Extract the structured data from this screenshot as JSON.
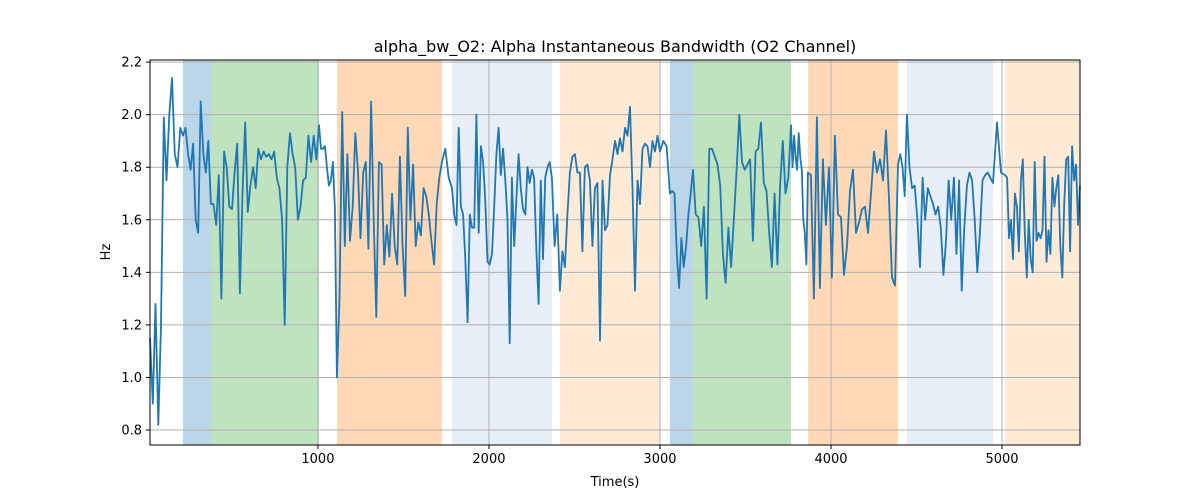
{
  "chart_data": {
    "type": "line",
    "title": "alpha_bw_O2: Alpha Instantaneous Bandwidth (O2 Channel)",
    "xlabel": "Time(s)",
    "ylabel": "Hz",
    "xlim": [
      18,
      5456
    ],
    "ylim": [
      0.743,
      2.208
    ],
    "xticks": [
      1000,
      2000,
      3000,
      4000,
      5000
    ],
    "yticks": [
      0.8,
      1.0,
      1.2,
      1.4,
      1.6,
      1.8,
      2.0,
      2.2
    ],
    "ytick_labels": [
      "0.8",
      "1.0",
      "1.2",
      "1.4",
      "1.6",
      "1.8",
      "2.0",
      "2.2"
    ],
    "grid": true,
    "line_color": "#1f77b4",
    "shaded_regions": [
      {
        "x0": 211,
        "x1": 374,
        "color": "#1f77b4",
        "alpha": 0.3
      },
      {
        "x0": 374,
        "x1": 1006,
        "color": "#2ca02c",
        "alpha": 0.3
      },
      {
        "x0": 1111,
        "x1": 1725,
        "color": "#ff7f0e",
        "alpha": 0.3
      },
      {
        "x0": 1784,
        "x1": 2368,
        "color": "#aec7e8",
        "alpha": 0.3
      },
      {
        "x0": 2415,
        "x1": 3000,
        "color": "#ffbb78",
        "alpha": 0.3
      },
      {
        "x0": 3058,
        "x1": 3193,
        "color": "#1f77b4",
        "alpha": 0.3
      },
      {
        "x0": 3193,
        "x1": 3766,
        "color": "#2ca02c",
        "alpha": 0.3
      },
      {
        "x0": 3866,
        "x1": 4392,
        "color": "#ff7f0e",
        "alpha": 0.3
      },
      {
        "x0": 4444,
        "x1": 4947,
        "color": "#aec7e8",
        "alpha": 0.3
      },
      {
        "x0": 5018,
        "x1": 5456,
        "color": "#ffbb78",
        "alpha": 0.3
      }
    ],
    "series_segments": [
      {
        "x0": 18,
        "x1": 211,
        "y": [
          1.15,
          0.9,
          1.28,
          0.82,
          1.2,
          1.99,
          1.75,
          2.0,
          2.14,
          1.85,
          1.8,
          1.95
        ]
      },
      {
        "x0": 211,
        "x1": 374,
        "y": [
          1.92,
          1.95,
          1.85,
          1.79,
          1.89,
          1.6,
          1.55,
          2.05,
          1.85,
          1.78,
          1.9
        ]
      },
      {
        "x0": 374,
        "x1": 1006,
        "y": [
          1.66,
          1.66,
          1.58,
          1.77,
          1.3,
          1.86,
          1.8,
          1.65,
          1.64,
          1.78,
          1.89,
          1.32,
          1.7,
          1.97,
          1.63,
          1.73,
          1.8,
          1.72,
          1.87,
          1.83,
          1.86,
          1.84,
          1.85,
          1.83,
          1.86,
          1.76,
          1.72,
          1.6,
          1.2,
          1.8,
          1.93,
          1.85,
          1.8,
          1.6,
          1.65,
          1.75,
          1.76,
          1.92,
          1.82,
          1.92,
          1.83
        ]
      },
      {
        "x0": 1006,
        "x1": 1111,
        "y": [
          1.96,
          1.87,
          1.87,
          1.88,
          1.8,
          1.73,
          1.75,
          1.82,
          1.64
        ]
      },
      {
        "x0": 1111,
        "x1": 1725,
        "y": [
          1.0,
          1.3,
          2.01,
          1.5,
          1.85,
          1.52,
          1.65,
          1.93,
          1.79,
          1.53,
          1.78,
          1.82,
          1.49,
          2.05,
          1.6,
          1.23,
          1.82,
          1.81,
          1.43,
          1.58,
          1.46,
          1.7,
          1.5,
          1.43,
          1.84,
          1.5,
          1.31,
          1.95,
          1.6,
          1.81,
          1.5,
          1.59,
          1.54,
          1.72,
          1.69,
          1.62,
          1.52,
          1.43,
          1.66,
          1.76
        ]
      },
      {
        "x0": 1725,
        "x1": 1784,
        "y": [
          1.82,
          1.87,
          1.76
        ]
      },
      {
        "x0": 1784,
        "x1": 2368,
        "y": [
          1.72,
          1.62,
          1.58,
          1.95,
          1.65,
          1.62,
          1.45,
          1.21,
          1.62,
          1.57,
          1.57,
          2.0,
          1.55,
          1.88,
          1.82,
          1.67,
          1.44,
          1.43,
          1.47,
          1.65,
          1.85,
          1.95,
          1.77,
          1.87,
          1.75,
          1.6,
          1.13,
          1.76,
          1.5,
          1.68,
          1.85,
          1.72,
          1.64,
          1.62,
          1.8,
          1.74,
          1.79,
          1.76,
          1.48,
          1.28,
          1.75,
          1.45,
          1.76,
          1.8,
          1.82
        ]
      },
      {
        "x0": 2368,
        "x1": 2415,
        "y": [
          1.76,
          1.5,
          1.62
        ]
      },
      {
        "x0": 2415,
        "x1": 3000,
        "y": [
          1.33,
          1.48,
          1.42,
          1.62,
          1.78,
          1.84,
          1.85,
          1.78,
          1.78,
          1.48,
          1.8,
          1.81,
          1.75,
          1.5,
          1.72,
          1.74,
          1.14,
          1.75,
          1.56,
          1.58,
          1.77,
          1.83,
          1.9,
          1.85,
          1.91,
          1.86,
          1.95,
          1.92,
          2.03,
          1.72,
          1.33,
          1.75,
          1.66,
          1.87,
          1.89,
          1.88,
          1.8,
          1.9,
          1.86,
          1.92
        ]
      },
      {
        "x0": 3000,
        "x1": 3058,
        "y": [
          1.86,
          1.9,
          1.88
        ]
      },
      {
        "x0": 3058,
        "x1": 3193,
        "y": [
          1.7,
          1.71,
          1.7,
          1.47,
          1.34,
          1.53,
          1.42,
          1.5,
          1.62,
          1.7
        ]
      },
      {
        "x0": 3193,
        "x1": 3766,
        "y": [
          1.79,
          1.62,
          1.61,
          1.5,
          1.65,
          1.3,
          1.87,
          1.87,
          1.84,
          1.81,
          1.73,
          1.47,
          1.36,
          1.57,
          1.42,
          1.6,
          1.78,
          2.0,
          1.82,
          1.79,
          1.81,
          1.83,
          1.52,
          1.86,
          1.87,
          1.97,
          1.74,
          1.71,
          1.55,
          1.42,
          1.7,
          1.43,
          1.73,
          1.9,
          1.7,
          1.76
        ]
      },
      {
        "x0": 3766,
        "x1": 3865,
        "y": [
          1.96,
          1.8,
          1.92,
          1.84,
          1.79,
          1.93,
          1.84,
          1.79,
          1.6,
          1.55,
          1.43
        ]
      },
      {
        "x0": 3865,
        "x1": 4392,
        "y": [
          1.78,
          1.77,
          1.3,
          1.99,
          1.34,
          1.83,
          1.58,
          1.8,
          1.38,
          1.92,
          1.62,
          1.61,
          1.39,
          1.5,
          1.71,
          1.79,
          1.55,
          1.59,
          1.64,
          1.65,
          1.55,
          1.7,
          1.86,
          1.78,
          1.83,
          1.75,
          1.94,
          1.68,
          1.38,
          1.35
        ]
      },
      {
        "x0": 4392,
        "x1": 4444,
        "y": [
          1.81,
          1.85,
          1.8,
          1.69
        ]
      },
      {
        "x0": 4444,
        "x1": 4947,
        "y": [
          2.0,
          1.8,
          1.72,
          1.73,
          1.6,
          1.42,
          1.76,
          1.6,
          1.72,
          1.69,
          1.66,
          1.62,
          1.65,
          1.57,
          1.39,
          1.52,
          1.75,
          1.6,
          1.76,
          1.47,
          1.75,
          1.33,
          1.57,
          1.73,
          1.78,
          1.75,
          1.6,
          1.4,
          1.55,
          1.75,
          1.77,
          1.78,
          1.76
        ]
      },
      {
        "x0": 4947,
        "x1": 5018,
        "y": [
          1.74,
          1.97,
          1.78
        ]
      },
      {
        "x0": 5018,
        "x1": 5456,
        "y": [
          1.77,
          1.76,
          1.53,
          1.6,
          1.45,
          1.7,
          1.65,
          1.48,
          1.75,
          1.83,
          1.55,
          1.38,
          1.6,
          1.45,
          1.4,
          1.82,
          1.52,
          1.55,
          1.53,
          1.56,
          1.84,
          1.44,
          1.56,
          1.47,
          1.76,
          1.65,
          1.72,
          1.77,
          1.5,
          1.38,
          1.66,
          1.83,
          1.84,
          1.48,
          1.88,
          1.75,
          1.81,
          1.58,
          1.73
        ]
      }
    ]
  }
}
